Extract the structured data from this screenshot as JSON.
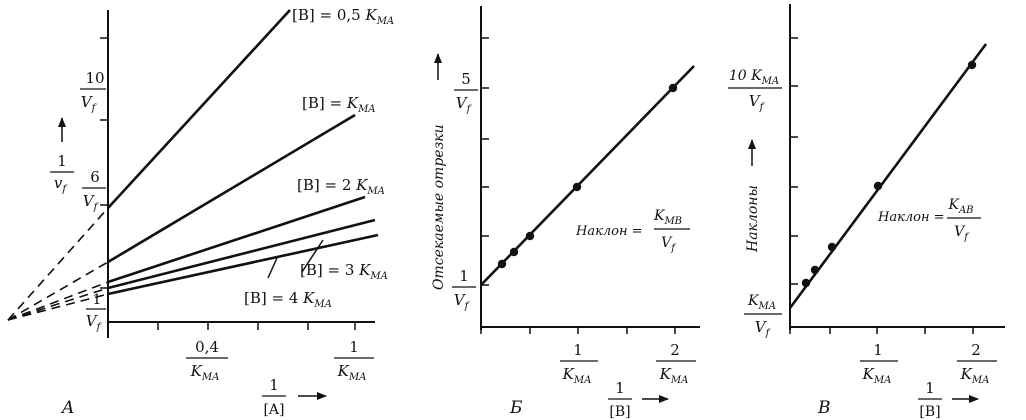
{
  "panel_a": {
    "letter": "A",
    "y_axis": {
      "num": "1",
      "den": "v",
      "den_sub": "f"
    },
    "x_axis": {
      "num": "1",
      "den": "[A]"
    },
    "y_ticks": [
      {
        "num": "10",
        "den": "V",
        "den_sub": "f"
      },
      {
        "num": "6",
        "den": "V",
        "den_sub": "f"
      },
      {
        "num": "1",
        "den": "V",
        "den_sub": "f"
      }
    ],
    "x_ticks": [
      {
        "num": "0,4",
        "den": "K",
        "den_sub": "MA"
      },
      {
        "num": "1",
        "den": "K",
        "den_sub": "MA"
      }
    ],
    "curves": [
      {
        "pre": "[B] = 0,5 ",
        "k": "K",
        "sub": "MA"
      },
      {
        "pre": "[B] = ",
        "k": "K",
        "sub": "MA"
      },
      {
        "pre": "[B] = 2 ",
        "k": "K",
        "sub": "MA"
      },
      {
        "pre": "[B] = 3 ",
        "k": "K",
        "sub": "MA"
      },
      {
        "pre": "[B] = 4 ",
        "k": "K",
        "sub": "MA"
      }
    ]
  },
  "panel_b": {
    "letter": "Б",
    "y_axis_label": "Отсекаемые отрезки",
    "x_axis": {
      "num": "1",
      "den": "[B]"
    },
    "y_ticks": [
      {
        "num": "5",
        "den": "V",
        "den_sub": "f"
      },
      {
        "num": "1",
        "den": "V",
        "den_sub": "f"
      }
    ],
    "x_ticks": [
      {
        "num": "1",
        "den": "K",
        "den_sub": "MA"
      },
      {
        "num": "2",
        "den": "K",
        "den_sub": "MA"
      }
    ],
    "slope": {
      "label": "Наклон =",
      "num": "K",
      "num_sub": "MB",
      "den": "V",
      "den_sub": "f"
    }
  },
  "panel_c": {
    "letter": "В",
    "y_axis_label": "Наклоны",
    "x_axis": {
      "num": "1",
      "den": "[B]"
    },
    "y_ticks": [
      {
        "num": "10 K",
        "num_sub": "MA",
        "den": "V",
        "den_sub": "f"
      },
      {
        "num": "K",
        "num_sub": "MA",
        "den": "V",
        "den_sub": "f"
      }
    ],
    "x_ticks": [
      {
        "num": "1",
        "den": "K",
        "den_sub": "MA"
      },
      {
        "num": "2",
        "den": "K",
        "den_sub": "MA"
      }
    ],
    "slope": {
      "label": "Наклон =",
      "num": "K",
      "num_sub": "AB",
      "den": "V",
      "den_sub": "f"
    }
  }
}
